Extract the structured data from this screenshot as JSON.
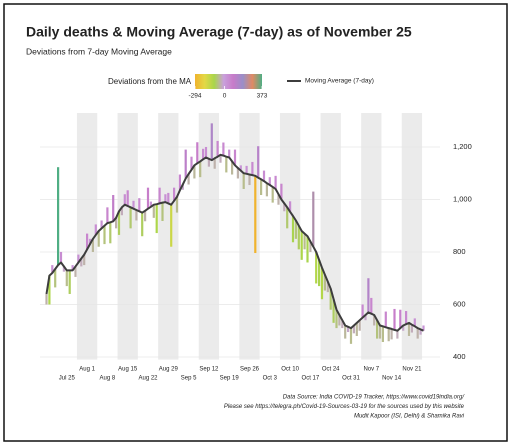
{
  "chart_data": {
    "type": "deviation",
    "title": "Daily deaths & Moving Average (7-day) as of November 25",
    "subtitle": "Deviations from 7-day Moving Average",
    "x": [
      "Jul 18",
      "Jul 19",
      "Jul 20",
      "Jul 21",
      "Jul 22",
      "Jul 23",
      "Jul 24",
      "Jul 25",
      "Jul 26",
      "Jul 27",
      "Jul 28",
      "Jul 29",
      "Jul 30",
      "Jul 31",
      "Aug 1",
      "Aug 2",
      "Aug 3",
      "Aug 4",
      "Aug 5",
      "Aug 6",
      "Aug 7",
      "Aug 8",
      "Aug 9",
      "Aug 10",
      "Aug 11",
      "Aug 12",
      "Aug 13",
      "Aug 14",
      "Aug 15",
      "Aug 16",
      "Aug 17",
      "Aug 18",
      "Aug 19",
      "Aug 20",
      "Aug 21",
      "Aug 22",
      "Aug 23",
      "Aug 24",
      "Aug 25",
      "Aug 26",
      "Aug 27",
      "Aug 28",
      "Aug 29",
      "Aug 30",
      "Aug 31",
      "Sep 1",
      "Sep 2",
      "Sep 3",
      "Sep 4",
      "Sep 5",
      "Sep 6",
      "Sep 7",
      "Sep 8",
      "Sep 9",
      "Sep 10",
      "Sep 11",
      "Sep 12",
      "Sep 13",
      "Sep 14",
      "Sep 15",
      "Sep 16",
      "Sep 17",
      "Sep 18",
      "Sep 19",
      "Sep 20",
      "Sep 21",
      "Sep 22",
      "Sep 23",
      "Sep 24",
      "Sep 25",
      "Sep 26",
      "Sep 27",
      "Sep 28",
      "Sep 29",
      "Sep 30",
      "Oct 1",
      "Oct 2",
      "Oct 3",
      "Oct 4",
      "Oct 5",
      "Oct 6",
      "Oct 7",
      "Oct 8",
      "Oct 9",
      "Oct 10",
      "Oct 11",
      "Oct 12",
      "Oct 13",
      "Oct 14",
      "Oct 15",
      "Oct 16",
      "Oct 17",
      "Oct 18",
      "Oct 19",
      "Oct 20",
      "Oct 21",
      "Oct 22",
      "Oct 23",
      "Oct 24",
      "Oct 25",
      "Oct 26",
      "Oct 27",
      "Oct 28",
      "Oct 29",
      "Oct 30",
      "Oct 31",
      "Nov 1",
      "Nov 2",
      "Nov 3",
      "Nov 4",
      "Nov 5",
      "Nov 6",
      "Nov 7",
      "Nov 8",
      "Nov 9",
      "Nov 10",
      "Nov 11",
      "Nov 12",
      "Nov 13",
      "Nov 14",
      "Nov 15",
      "Nov 16",
      "Nov 17",
      "Nov 18",
      "Nov 19",
      "Nov 20",
      "Nov 21",
      "Nov 22",
      "Nov 23",
      "Nov 24",
      "Nov 25"
    ],
    "xticks": [
      "Jul 25",
      "Aug 1",
      "Aug 8",
      "Aug 15",
      "Aug 22",
      "Aug 29",
      "Sep 5",
      "Sep 12",
      "Sep 19",
      "Sep 26",
      "Oct 3",
      "Oct 10",
      "Oct 17",
      "Oct 24",
      "Oct 31",
      "Nov 7",
      "Nov 14",
      "Nov 21"
    ],
    "ylim": [
      390,
      1310
    ],
    "yticks": [
      400,
      600,
      800,
      {
        "value": 1000,
        "label": "1,000"
      },
      {
        "value": 1200,
        "label": "1,200"
      }
    ],
    "grid": true,
    "moving_average": {
      "name": "Moving Average (7-day)",
      "color": "#3d3d3d",
      "values": [
        640,
        710,
        720,
        735,
        750,
        760,
        745,
        730,
        730,
        730,
        745,
        760,
        775,
        790,
        810,
        830,
        850,
        865,
        880,
        890,
        900,
        910,
        913,
        917,
        930,
        955,
        970,
        980,
        975,
        970,
        965,
        960,
        955,
        950,
        957,
        965,
        972,
        980,
        982,
        985,
        988,
        990,
        985,
        980,
        995,
        1010,
        1035,
        1057,
        1080,
        1097,
        1113,
        1130,
        1138,
        1145,
        1153,
        1160,
        1155,
        1150,
        1157,
        1163,
        1170,
        1167,
        1163,
        1160,
        1145,
        1130,
        1120,
        1110,
        1100,
        1098,
        1095,
        1093,
        1090,
        1083,
        1077,
        1070,
        1062,
        1055,
        1048,
        1040,
        1020,
        1000,
        985,
        970,
        953,
        937,
        920,
        900,
        880,
        870,
        860,
        840,
        820,
        800,
        770,
        740,
        713,
        687,
        660,
        620,
        580,
        560,
        540,
        520,
        515,
        510,
        520,
        530,
        540,
        550,
        560,
        570,
        565,
        560,
        540,
        520,
        517,
        513,
        510,
        507,
        503,
        500,
        510,
        520,
        525,
        530,
        523,
        517,
        510,
        505,
        500
      ]
    },
    "deviations": {
      "name": "Deviations from the MA",
      "lim": [
        -294,
        373
      ],
      "ticks": [
        -294,
        0,
        373
      ],
      "colors": [
        "#f0b32e",
        "#e3d845",
        "#a9d64a",
        "#c9a0dc",
        "#c77bc9",
        "#9a8fc8",
        "#e08a64",
        "#4fae84"
      ],
      "values": [
        -40,
        -110,
        30,
        -70,
        373,
        40,
        -20,
        -60,
        -90,
        20,
        -40,
        30,
        -30,
        -40,
        60,
        20,
        -50,
        40,
        -60,
        30,
        -70,
        60,
        -80,
        100,
        -40,
        -90,
        -30,
        40,
        60,
        -80,
        30,
        -40,
        50,
        -90,
        -40,
        80,
        20,
        -50,
        -110,
        60,
        -70,
        30,
        40,
        -160,
        50,
        -60,
        60,
        -20,
        110,
        -40,
        50,
        -50,
        80,
        -60,
        40,
        40,
        -30,
        140,
        -40,
        60,
        -30,
        50,
        -60,
        30,
        -50,
        60,
        -40,
        20,
        -60,
        30,
        -40,
        50,
        -294,
        120,
        -60,
        40,
        -50,
        30,
        -60,
        50,
        -40,
        60,
        -30,
        -80,
        40,
        -100,
        -70,
        -90,
        -110,
        -60,
        -100,
        -40,
        210,
        -120,
        -100,
        -120,
        -60,
        -40,
        -80,
        -90,
        -70,
        -40,
        -30,
        -50,
        -20,
        -60,
        -30,
        -50,
        -40,
        50,
        -20,
        130,
        60,
        -40,
        -70,
        -50,
        -60,
        60,
        -50,
        -40,
        80,
        -30,
        70,
        -20,
        50,
        -50,
        -30,
        30,
        -40,
        -20,
        20
      ]
    },
    "source": [
      "Data Source: India COVID-19 Tracker, https://www.covid19india.org/",
      "Please see https://telegra.ph/Covid-19-Sources-03-19 for the sources used by this website",
      "Mudit Kapoor (ISI, Delhi) & Shamika Ravi"
    ]
  }
}
